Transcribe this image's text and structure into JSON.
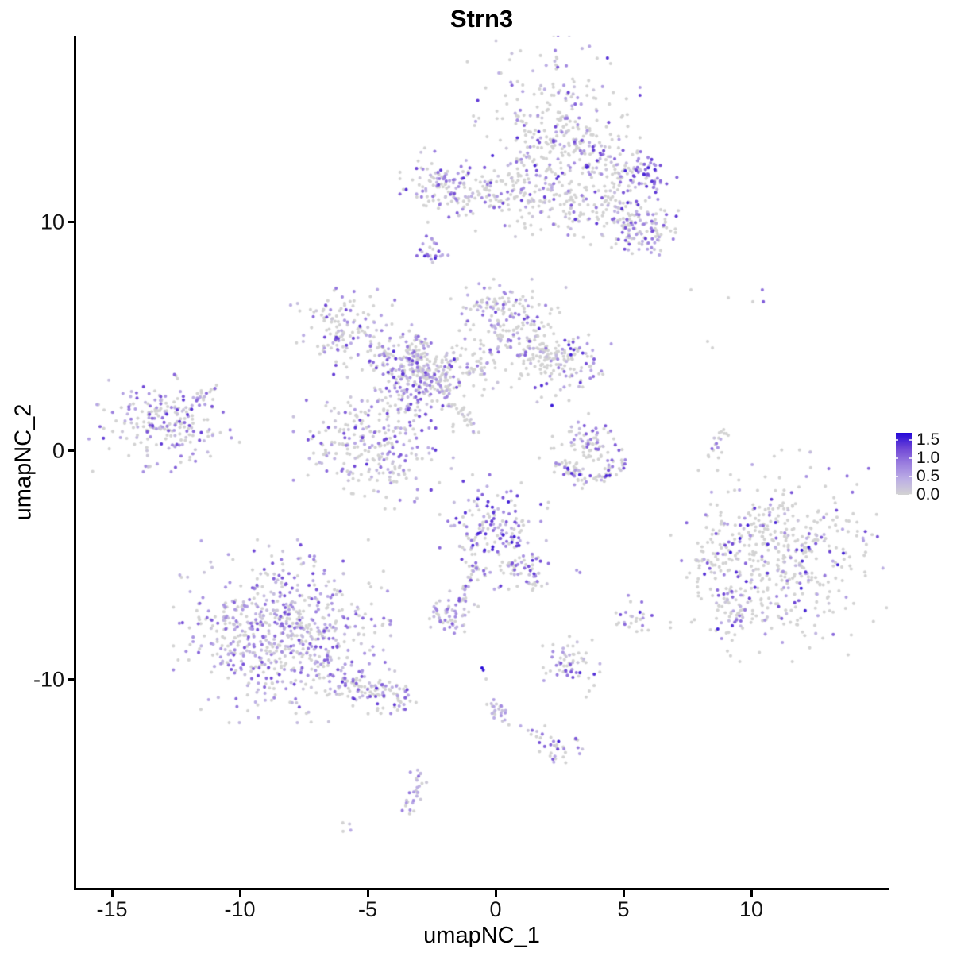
{
  "title": "Strn3",
  "chart_data": {
    "type": "scatter",
    "title": "Strn3",
    "xlabel": "umapNC_1",
    "ylabel": "umapNC_2",
    "xlim": [
      -16.43,
      15.34
    ],
    "ylim": [
      -19.1,
      18.16
    ],
    "x_ticks": [
      -15,
      -10,
      -5,
      0,
      5,
      10
    ],
    "x_tick_labels": [
      "-15",
      "-10",
      "-5",
      "0",
      "5",
      "10"
    ],
    "y_ticks": [
      -10,
      0,
      10
    ],
    "y_tick_labels": [
      "-10",
      "0",
      "10"
    ],
    "grid": false,
    "plot": {
      "l": 95,
      "t": 45,
      "r": 1118,
      "b": 1118
    },
    "point_radius": 2.05,
    "seed": 7,
    "legend": {
      "position": "right",
      "max": 1.7,
      "tick_values": [
        1.5,
        1.0,
        0.5,
        0.0
      ],
      "tick_labels": [
        "1.5",
        "1.0",
        "0.5",
        "0.0"
      ]
    },
    "color_scale": {
      "low": "#D3D3D3",
      "high": "#1C0AEE",
      "stops": [
        "#D3D3D3",
        "#BCAEE5",
        "#9B7FDF",
        "#6F46D6",
        "#2408D8"
      ]
    },
    "colors": {
      "axis": "#000000",
      "text": "#111111",
      "background": "#ffffff"
    },
    "n_points_estimate": 4400,
    "clusters": [
      {
        "name": "top-main",
        "t": "b",
        "x": 2.27,
        "y": 13.82,
        "sx": 1.35,
        "sy": 1.75,
        "n": 330,
        "p0": 0.62,
        "emax": 1.5,
        "pw": 1.5
      },
      {
        "name": "top-right-wing",
        "t": "s",
        "x1": 2.98,
        "y1": 13.3,
        "x2": 5.47,
        "y2": 11.91,
        "w": 0.45,
        "n": 90,
        "p0": 0.55,
        "emax": 1.4,
        "pw": 1.4
      },
      {
        "name": "top-right-knot",
        "t": "b",
        "x": 5.84,
        "y": 12.15,
        "sx": 0.5,
        "sy": 0.4,
        "n": 55,
        "p0": 0.22,
        "emax": 1.6,
        "pw": 1.0
      },
      {
        "name": "top-left-arm",
        "t": "s",
        "x1": -2.76,
        "y1": 11.56,
        "x2": 1.24,
        "y2": 11.22,
        "w": 0.5,
        "n": 120,
        "p0": 0.58,
        "emax": 1.4,
        "pw": 1.4
      },
      {
        "name": "top-left-arm-end",
        "t": "b",
        "x": -2.24,
        "y": 11.63,
        "sx": 0.6,
        "sy": 0.65,
        "n": 60,
        "p0": 0.45,
        "emax": 1.5,
        "pw": 1.2
      },
      {
        "name": "top-lower-right-arm",
        "t": "s",
        "x1": 4.07,
        "y1": 10.87,
        "x2": 6.65,
        "y2": 9.38,
        "w": 0.5,
        "n": 100,
        "p0": 0.55,
        "emax": 1.5,
        "pw": 1.3
      },
      {
        "name": "top-lower-right-blob",
        "t": "b",
        "x": 5.47,
        "y": 9.72,
        "sx": 0.7,
        "sy": 0.55,
        "n": 70,
        "p0": 0.5,
        "emax": 1.5,
        "pw": 1.3
      },
      {
        "name": "top-center-scatter",
        "t": "b",
        "x": 1.99,
        "y": 10.97,
        "sx": 1.15,
        "sy": 0.8,
        "n": 90,
        "p0": 0.78,
        "emax": 1.2,
        "pw": 1.5
      },
      {
        "name": "top-small-dot",
        "t": "b",
        "x": -2.45,
        "y": 8.78,
        "sx": 0.28,
        "sy": 0.33,
        "n": 25,
        "p0": 0.35,
        "emax": 1.5,
        "pw": 1.0
      },
      {
        "name": "mid-upper-left",
        "t": "b",
        "x": -6.02,
        "y": 5.31,
        "sx": 0.95,
        "sy": 0.85,
        "n": 130,
        "p0": 0.55,
        "emax": 1.4,
        "pw": 1.3
      },
      {
        "name": "mid-left-arm",
        "t": "s",
        "x1": -4.78,
        "y1": 4.44,
        "x2": -1.99,
        "y2": 3.06,
        "w": 0.45,
        "n": 110,
        "p0": 0.5,
        "emax": 1.4,
        "pw": 1.3
      },
      {
        "name": "mid-vert-strand",
        "t": "s",
        "x1": -3.32,
        "y1": 5.31,
        "x2": -3.01,
        "y2": 3.16,
        "w": 0.3,
        "n": 60,
        "p0": 0.6,
        "emax": 1.4,
        "pw": 1.4
      },
      {
        "name": "mid-top-blob",
        "t": "b",
        "x": 0.5,
        "y": 5.56,
        "sx": 0.9,
        "sy": 0.78,
        "n": 140,
        "p0": 0.6,
        "emax": 1.4,
        "pw": 1.4
      },
      {
        "name": "mid-top-spur",
        "t": "s",
        "x1": -0.75,
        "y1": 6.18,
        "x2": 0.75,
        "y2": 6.67,
        "w": 0.3,
        "n": 35,
        "p0": 0.55,
        "emax": 1.4,
        "pw": 1.4
      },
      {
        "name": "mid-right-blob",
        "t": "b",
        "x": 2.52,
        "y": 3.99,
        "sx": 0.85,
        "sy": 0.8,
        "n": 130,
        "p0": 0.6,
        "emax": 1.6,
        "pw": 1.3
      },
      {
        "name": "mid-right-link",
        "t": "s",
        "x1": 1.12,
        "y1": 4.44,
        "x2": 2.05,
        "y2": 4.1,
        "w": 0.3,
        "n": 40,
        "p0": 0.7,
        "emax": 1.3,
        "pw": 1.5
      },
      {
        "name": "mid-central-knot",
        "t": "b",
        "x": -3.23,
        "y": 3.13,
        "sx": 0.8,
        "sy": 0.85,
        "n": 160,
        "p0": 0.38,
        "emax": 1.5,
        "pw": 1.2
      },
      {
        "name": "mid-lower-blob",
        "t": "b",
        "x": -4.78,
        "y": 0.35,
        "sx": 1.25,
        "sy": 1.15,
        "n": 270,
        "p0": 0.52,
        "emax": 1.4,
        "pw": 1.4
      },
      {
        "name": "mid-thin-streak",
        "t": "s",
        "x1": -2.45,
        "y1": 3.23,
        "x2": -0.75,
        "y2": 0.8,
        "w": 0.12,
        "n": 45,
        "p0": 0.6,
        "emax": 1.3,
        "pw": 1.5
      },
      {
        "name": "mid-connector",
        "t": "b",
        "x": -0.99,
        "y": 3.68,
        "sx": 0.85,
        "sy": 0.5,
        "n": 70,
        "p0": 0.75,
        "emax": 1.2,
        "pw": 1.5
      },
      {
        "name": "far-left",
        "t": "b",
        "x": -13.01,
        "y": 1.22,
        "sx": 1.2,
        "sy": 0.85,
        "n": 220,
        "p0": 0.48,
        "emax": 1.4,
        "pw": 1.3
      },
      {
        "name": "far-left-spur",
        "t": "s",
        "x1": -11.77,
        "y1": 2.19,
        "x2": -10.93,
        "y2": 2.81,
        "w": 0.15,
        "n": 14,
        "p0": 0.5,
        "emax": 1.2,
        "pw": 1.3
      },
      {
        "name": "crescent-top",
        "t": "b",
        "x": 3.76,
        "y": 0.69,
        "sx": 0.45,
        "sy": 0.4,
        "n": 40,
        "p0": 0.4,
        "emax": 1.2,
        "pw": 1.0
      },
      {
        "name": "crescent-mid",
        "t": "b",
        "x": 3.45,
        "y": 0.03,
        "sx": 0.8,
        "sy": 0.45,
        "n": 40,
        "p0": 0.8,
        "emax": 1.3,
        "pw": 1.5
      },
      {
        "name": "crescent-arc-left",
        "t": "s",
        "x1": 2.36,
        "y1": -0.59,
        "x2": 3.6,
        "y2": -1.22,
        "w": 0.2,
        "n": 40,
        "p0": 0.7,
        "emax": 1.5,
        "pw": 1.3
      },
      {
        "name": "crescent-arc-right",
        "t": "s",
        "x1": 3.6,
        "y1": -1.22,
        "x2": 5.06,
        "y2": -0.52,
        "w": 0.2,
        "n": 35,
        "p0": 0.6,
        "emax": 1.5,
        "pw": 1.3
      },
      {
        "name": "right-arc-lower",
        "t": "s",
        "x1": 8.35,
        "y1": -0.49,
        "x2": 8.73,
        "y2": 0.45,
        "w": 0.12,
        "n": 10,
        "p0": 0.75,
        "emax": 1.2,
        "pw": 1.3
      },
      {
        "name": "right-arc-upper",
        "t": "s",
        "x1": 8.73,
        "y1": 0.45,
        "x2": 9.1,
        "y2": 0.97,
        "w": 0.12,
        "n": 8,
        "p0": 0.75,
        "emax": 1.2,
        "pw": 1.3
      },
      {
        "name": "right-main",
        "t": "b",
        "x": 11.21,
        "y": -4.58,
        "sx": 1.75,
        "sy": 1.85,
        "n": 500,
        "p0": 0.7,
        "emax": 1.65,
        "pw": 1.1
      },
      {
        "name": "right-appendage",
        "t": "b",
        "x": 8.73,
        "y": -4.58,
        "sx": 0.45,
        "sy": 0.55,
        "n": 30,
        "p0": 0.6,
        "emax": 1.3,
        "pw": 1.3
      },
      {
        "name": "right-lower-arm",
        "t": "s",
        "x1": 8.73,
        "y1": -6.15,
        "x2": 9.66,
        "y2": -7.53,
        "w": 0.35,
        "n": 45,
        "p0": 0.55,
        "emax": 1.4,
        "pw": 1.3
      },
      {
        "name": "small-right-mid",
        "t": "b",
        "x": 5.47,
        "y": -7.36,
        "sx": 0.4,
        "sy": 0.42,
        "n": 25,
        "p0": 0.5,
        "emax": 1.5,
        "pw": 1.2
      },
      {
        "name": "bottom-left-main",
        "t": "b",
        "x": -8.35,
        "y": -7.88,
        "sx": 1.7,
        "sy": 1.6,
        "n": 680,
        "p0": 0.4,
        "emax": 1.25,
        "pw": 1.4
      },
      {
        "name": "bottom-left-tail",
        "t": "s",
        "x1": -6.34,
        "y1": -9.97,
        "x2": -3.39,
        "y2": -11.01,
        "w": 0.45,
        "n": 130,
        "p0": 0.5,
        "emax": 1.4,
        "pw": 1.3
      },
      {
        "name": "center-bottom",
        "t": "b",
        "x": -0.06,
        "y": -3.54,
        "sx": 0.85,
        "sy": 1.0,
        "n": 170,
        "p0": 0.3,
        "emax": 1.55,
        "pw": 1.2
      },
      {
        "name": "center-bottom-arm",
        "t": "s",
        "x1": 0.65,
        "y1": -4.76,
        "x2": 1.8,
        "y2": -6.04,
        "w": 0.3,
        "n": 45,
        "p0": 0.5,
        "emax": 1.4,
        "pw": 1.3
      },
      {
        "name": "center-bottom-tail",
        "t": "s",
        "x1": -0.75,
        "y1": -4.93,
        "x2": -1.37,
        "y2": -6.56,
        "w": 0.12,
        "n": 30,
        "p0": 0.45,
        "emax": 1.2,
        "pw": 1.4
      },
      {
        "name": "small-dense",
        "t": "b",
        "x": -1.93,
        "y": -7.12,
        "sx": 0.5,
        "sy": 0.4,
        "n": 55,
        "p0": 0.25,
        "emax": 1.2,
        "pw": 1.3
      },
      {
        "name": "small-mid-bottom",
        "t": "b",
        "x": 2.92,
        "y": -9.38,
        "sx": 0.6,
        "sy": 0.55,
        "n": 60,
        "p0": 0.45,
        "emax": 1.5,
        "pw": 1.2
      },
      {
        "name": "trail-upper",
        "t": "s",
        "x1": -0.19,
        "y1": -10.76,
        "x2": 0.37,
        "y2": -11.81,
        "w": 0.18,
        "n": 22,
        "p0": 0.35,
        "emax": 1.0,
        "pw": 1.3
      },
      {
        "name": "trail-lower",
        "t": "s",
        "x1": 0.5,
        "y1": -11.94,
        "x2": 1.89,
        "y2": -12.4,
        "w": 0.15,
        "n": 10,
        "p0": 0.55,
        "emax": 1.0,
        "pw": 1.3
      },
      {
        "name": "trail-end",
        "t": "b",
        "x": 2.73,
        "y": -12.92,
        "sx": 0.5,
        "sy": 0.33,
        "n": 30,
        "p0": 0.45,
        "emax": 1.55,
        "pw": 1.1
      },
      {
        "name": "bottom-chain",
        "t": "s",
        "x1": -2.92,
        "y1": -13.89,
        "x2": -3.29,
        "y2": -15.76,
        "w": 0.18,
        "n": 28,
        "p0": 0.25,
        "emax": 1.0,
        "pw": 1.4
      },
      {
        "name": "bottom-pair",
        "t": "b",
        "x": -5.81,
        "y": -16.46,
        "sx": 0.15,
        "sy": 0.12,
        "n": 4,
        "p0": 0.25,
        "emax": 0.9,
        "pw": 1.2
      }
    ],
    "extra_points": [
      [
        7.64,
        7.05,
        0
      ],
      [
        9.1,
        6.7,
        0
      ],
      [
        10.06,
        6.53,
        0
      ],
      [
        10.43,
        7.05,
        0.95
      ],
      [
        10.47,
        6.53,
        1.1
      ],
      [
        8.29,
        4.79,
        0
      ],
      [
        8.48,
        4.51,
        0
      ],
      [
        -0.53,
        -9.48,
        1.7
      ],
      [
        -0.48,
        -9.58,
        1.55
      ],
      [
        -0.37,
        -9.97,
        0
      ],
      [
        3.17,
        -5.21,
        0.6
      ],
      [
        3.3,
        -5.31,
        0.75
      ],
      [
        -3.94,
        6.6,
        0.9
      ]
    ]
  }
}
